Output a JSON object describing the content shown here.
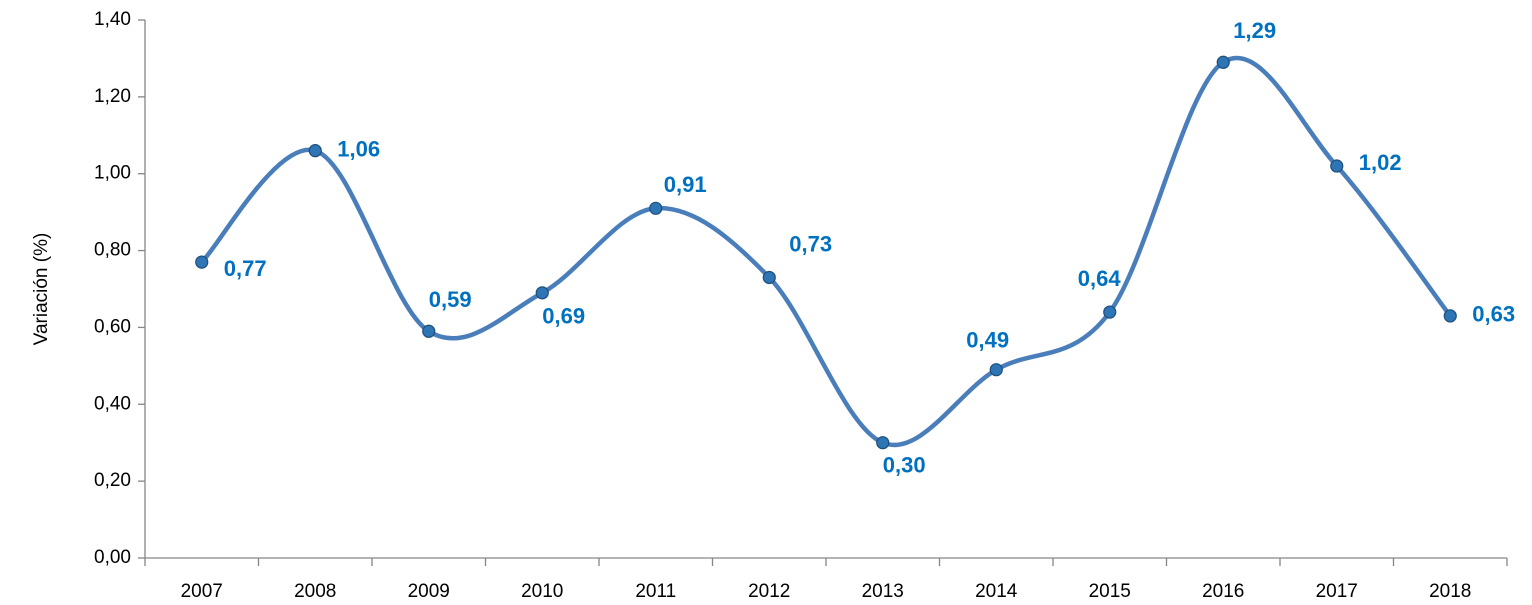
{
  "chart_data": {
    "type": "line",
    "y_label": "Variación (%)",
    "categories": [
      "2007",
      "2008",
      "2009",
      "2010",
      "2011",
      "2012",
      "2013",
      "2014",
      "2015",
      "2016",
      "2017",
      "2018"
    ],
    "series": [
      {
        "color": "#4a7ebb",
        "values": [
          0.77,
          1.06,
          0.59,
          0.69,
          0.91,
          0.73,
          0.3,
          0.49,
          0.64,
          1.29,
          1.02,
          0.63
        ],
        "value_labels": [
          "0,77",
          "1,06",
          "0,59",
          "0,69",
          "0,91",
          "0,73",
          "0,30",
          "0,49",
          "0,64",
          "1,29",
          "1,02",
          "0,63"
        ],
        "label_color": "#0070c0"
      }
    ],
    "ylim": [
      0,
      1.4
    ],
    "yticks": [
      {
        "value": 0,
        "label": "0,00"
      },
      {
        "value": 0.2,
        "label": "0,20"
      },
      {
        "value": 0.4,
        "label": "0,40"
      },
      {
        "value": 0.6,
        "label": "0,60"
      },
      {
        "value": 0.8,
        "label": "0,80"
      },
      {
        "value": 1.0,
        "label": "1,00"
      },
      {
        "value": 1.2,
        "label": "1,20"
      },
      {
        "value": 1.4,
        "label": "1,40"
      }
    ],
    "smooth": true
  }
}
